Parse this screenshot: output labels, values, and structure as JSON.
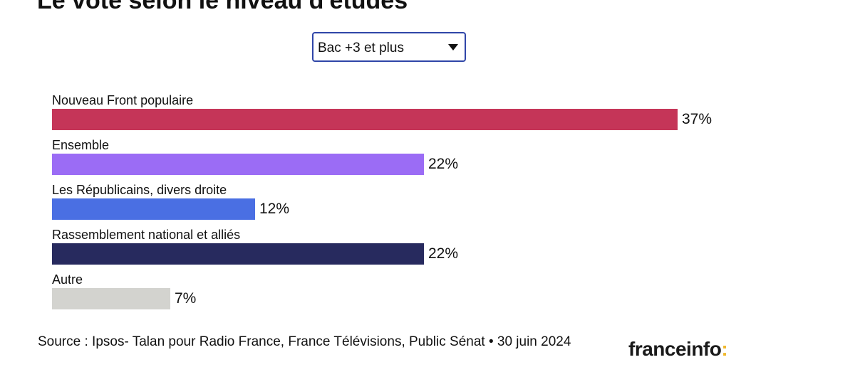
{
  "title": "Le vote selon le niveau d'études",
  "selector": {
    "selected": "Bac +3 et plus"
  },
  "chart_data": {
    "type": "bar",
    "orientation": "horizontal",
    "categories": [
      "Nouveau Front populaire",
      "Ensemble",
      "Les Républicains, divers droite",
      "Rassemblement national et alliés",
      "Autre"
    ],
    "values": [
      37,
      22,
      12,
      22,
      7
    ],
    "value_labels": [
      "37%",
      "22%",
      "12%",
      "22%",
      "7%"
    ],
    "colors": [
      "#c53558",
      "#9b6cf5",
      "#4a6fe3",
      "#272a5e",
      "#d3d3cf"
    ],
    "unit": "%",
    "xlim": [
      0,
      37
    ],
    "grid": false,
    "legend": "none"
  },
  "footer": {
    "source": "Source : Ipsos- Talan pour Radio France, France Télévisions, Public Sénat • 30 juin 2024",
    "logo_text": "franceinfo",
    "logo_colon": ":",
    "logo_accent": "#f0b82e"
  }
}
